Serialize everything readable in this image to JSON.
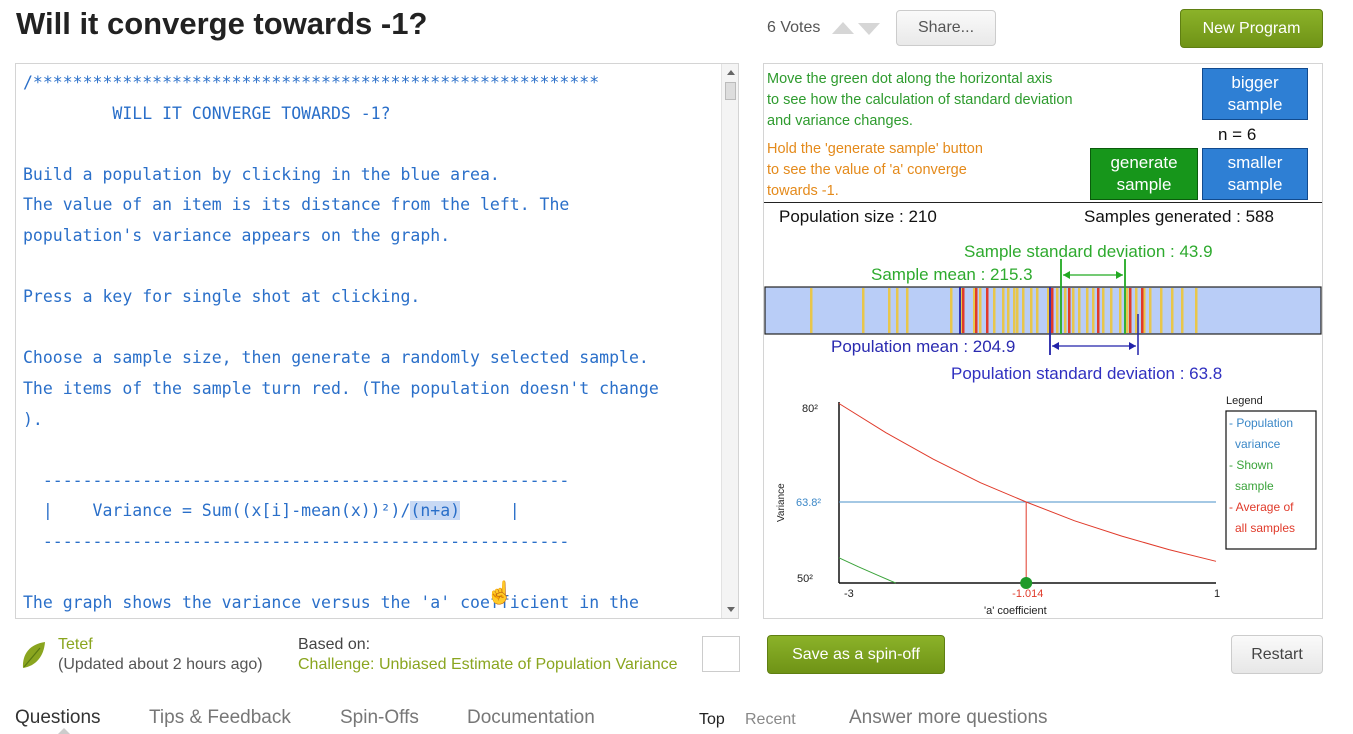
{
  "header": {
    "title": "Will it converge towards -1?",
    "votes": "6 Votes",
    "share_label": "Share...",
    "new_program_label": "New Program"
  },
  "editor": {
    "lines": [
      "/*********************************************************",
      "         WILL IT CONVERGE TOWARDS -1?",
      "",
      "Build a population by clicking in the blue area.",
      "The value of an item is its distance from the left. The",
      "population's variance appears on the graph.",
      "",
      "Press a key for single shot at clicking.",
      "",
      "Choose a sample size, then generate a randomly selected sample.",
      "The items of the sample turn red. (The population doesn't change",
      ").",
      "",
      "  -----------------------------------------------------",
      "  |    Variance = Sum((x[i]-mean(x))²)/",
      "  -----------------------------------------------------",
      "",
      "The graph shows the variance versus the 'a' coefficient in the"
    ],
    "highlight_text": "(n+a)",
    "formula_end": "     |"
  },
  "canvas": {
    "instructions": [
      "Move the green dot along the horizontal axis",
      "to see how the calculation of standard deviation",
      "and variance changes."
    ],
    "hold_text": [
      "Hold the 'generate sample' button",
      "to see the value of 'a' converge",
      "towards -1."
    ],
    "bigger_sample_label": [
      "bigger",
      "sample"
    ],
    "n_label": "n = 6",
    "generate_sample_label": [
      "generate",
      "sample"
    ],
    "smaller_sample_label": [
      "smaller",
      "sample"
    ],
    "population_size": "Population size : 210",
    "samples_generated": "Samples generated : 588",
    "sample_sd": "Sample standard deviation : 43.9",
    "sample_mean": "Sample mean : 215.3",
    "population_mean": "Population mean : 204.9",
    "population_sd": "Population standard deviation : 63.8",
    "colors": {
      "population_strip": "#b9cdf7",
      "population_item": "#e8c64c",
      "sample_item": "#e03a2a",
      "population_marker": "#2222aa",
      "sample_marker": "#22aa22"
    }
  },
  "chart_data": {
    "type": "line",
    "xlabel": "'a' coefficient",
    "ylabel": "Variance",
    "x_ticks": [
      "-3",
      "1"
    ],
    "y_ticks": [
      "80²",
      "63.8²",
      "50²"
    ],
    "xlim": [
      -3,
      1
    ],
    "ylim_label_range": [
      "50²",
      "80²"
    ],
    "selected_a": "-1.014",
    "population_variance_label": "63.8²",
    "legend": {
      "title": "Legend",
      "entries": [
        {
          "name": "- Population variance",
          "color": "#3a87c7"
        },
        {
          "name": "- Shown sample",
          "color": "#3aa33a"
        },
        {
          "name": "- Average of all samples",
          "color": "#e03a2a"
        }
      ]
    },
    "series": [
      {
        "name": "Average of all samples",
        "x": [
          -3,
          -2.5,
          -2,
          -1.5,
          -1.014,
          -0.5,
          0,
          0.5,
          1
        ],
        "y": [
          80.6,
          75.6,
          71.1,
          67.1,
          63.8,
          60.6,
          58.0,
          55.7,
          53.7
        ]
      },
      {
        "name": "Shown sample",
        "x": [
          -3,
          -2.8,
          -2.6,
          -2.4
        ],
        "y": [
          54.3,
          52.8,
          51.4,
          50.0
        ]
      },
      {
        "name": "Population variance",
        "x": [
          -3,
          1
        ],
        "y": [
          63.8,
          63.8
        ]
      }
    ]
  },
  "footer": {
    "author": "Tetef",
    "updated": "(Updated about 2 hours ago)",
    "based_on_label": "Based on:",
    "based_on_link": "Challenge: Unbiased Estimate of Population Variance",
    "spinoff_label": "Save as a spin-off",
    "restart_label": "Restart"
  },
  "tabs": {
    "questions": "Questions",
    "tips": "Tips & Feedback",
    "spinoffs": "Spin-Offs",
    "docs": "Documentation",
    "sort_top": "Top",
    "sort_recent": "Recent",
    "answer_more": "Answer more questions"
  }
}
